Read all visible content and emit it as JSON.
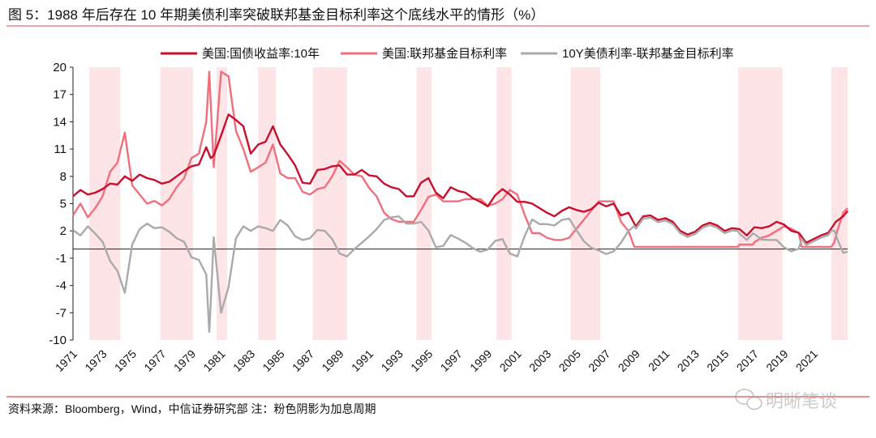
{
  "title": "图 5：1988 年后存在 10 年期美债利率突破联邦基金目标利率这个底线水平的情形（%）",
  "footer": {
    "source": "资料来源：Bloomberg，Wind，中信证券研究部  注：粉色阴影为加息周期",
    "watermark": "明晰笔谈"
  },
  "colors": {
    "ten_year": "#c8102e",
    "fed_funds": "#f06f7d",
    "spread": "#aaaaaa",
    "shading": "#fde4e7",
    "rule": "#e06c6c"
  },
  "chart_data": {
    "type": "line",
    "title": "图 5：1988 年后存在 10 年期美债利率突破联邦基金目标利率这个底线水平的情形（%）",
    "xlabel": "",
    "ylabel": "%",
    "ylim": [
      -10,
      20
    ],
    "xlim": [
      1971,
      2023.3
    ],
    "yticks": [
      "20",
      "17",
      "14",
      "11",
      "8",
      "5",
      "2",
      "-1",
      "-4",
      "-7",
      "-10"
    ],
    "ytick_values": [
      20,
      17,
      14,
      11,
      8,
      5,
      2,
      -1,
      -4,
      -7,
      -10
    ],
    "xticks": [
      "1971",
      "1973",
      "1975",
      "1977",
      "1979",
      "1981",
      "1983",
      "1985",
      "1987",
      "1989",
      "1991",
      "1993",
      "1995",
      "1997",
      "1999",
      "2001",
      "2003",
      "2005",
      "2007",
      "2009",
      "2011",
      "2013",
      "2015",
      "2017",
      "2019",
      "2021"
    ],
    "legend_position": "top-center",
    "grid": false,
    "zero_line": true,
    "shaded_periods_label": "加息周期",
    "shaded_periods": [
      [
        1972.1,
        1974.2
      ],
      [
        1976.9,
        1979.1
      ],
      [
        1980.7,
        1981.4
      ],
      [
        1983.5,
        1984.7
      ],
      [
        1987.2,
        1989.5
      ],
      [
        1994.2,
        1995.2
      ],
      [
        1999.6,
        2000.6
      ],
      [
        2004.6,
        2006.6
      ],
      [
        2015.9,
        2018.9
      ],
      [
        2022.2,
        2023.3
      ]
    ],
    "series": [
      {
        "name": "美国:国债收益率:10年",
        "key": "ten_year",
        "points": [
          [
            1971,
            5.8
          ],
          [
            1971.5,
            6.5
          ],
          [
            1972,
            6.0
          ],
          [
            1972.5,
            6.2
          ],
          [
            1973,
            6.6
          ],
          [
            1973.5,
            7.2
          ],
          [
            1974,
            7.1
          ],
          [
            1974.5,
            8.0
          ],
          [
            1975,
            7.5
          ],
          [
            1975.5,
            8.2
          ],
          [
            1976,
            7.8
          ],
          [
            1976.5,
            7.6
          ],
          [
            1977,
            7.2
          ],
          [
            1977.5,
            7.4
          ],
          [
            1978,
            8.0
          ],
          [
            1978.5,
            8.6
          ],
          [
            1979,
            9.1
          ],
          [
            1979.5,
            9.3
          ],
          [
            1980,
            11.2
          ],
          [
            1980.3,
            10.0
          ],
          [
            1980.5,
            10.3
          ],
          [
            1981,
            12.5
          ],
          [
            1981.5,
            14.8
          ],
          [
            1982,
            14.2
          ],
          [
            1982.5,
            13.5
          ],
          [
            1983,
            10.5
          ],
          [
            1983.5,
            11.5
          ],
          [
            1984,
            11.8
          ],
          [
            1984.5,
            13.5
          ],
          [
            1985,
            11.5
          ],
          [
            1985.5,
            10.4
          ],
          [
            1986,
            9.2
          ],
          [
            1986.5,
            7.3
          ],
          [
            1987,
            7.2
          ],
          [
            1987.5,
            8.7
          ],
          [
            1988,
            8.8
          ],
          [
            1988.5,
            9.1
          ],
          [
            1989,
            9.2
          ],
          [
            1989.5,
            8.2
          ],
          [
            1990,
            8.2
          ],
          [
            1990.5,
            8.7
          ],
          [
            1991,
            8.1
          ],
          [
            1991.5,
            8.0
          ],
          [
            1992,
            7.2
          ],
          [
            1992.5,
            6.8
          ],
          [
            1993,
            6.6
          ],
          [
            1993.5,
            5.8
          ],
          [
            1994,
            5.8
          ],
          [
            1994.5,
            7.3
          ],
          [
            1995,
            7.8
          ],
          [
            1995.5,
            6.2
          ],
          [
            1996,
            5.6
          ],
          [
            1996.5,
            6.8
          ],
          [
            1997,
            6.4
          ],
          [
            1997.5,
            6.2
          ],
          [
            1998,
            5.6
          ],
          [
            1998.5,
            5.2
          ],
          [
            1999,
            4.7
          ],
          [
            1999.5,
            5.9
          ],
          [
            2000,
            6.6
          ],
          [
            2000.5,
            6.0
          ],
          [
            2001,
            5.2
          ],
          [
            2001.5,
            5.2
          ],
          [
            2002,
            5.0
          ],
          [
            2002.5,
            4.5
          ],
          [
            2003,
            4.0
          ],
          [
            2003.5,
            3.6
          ],
          [
            2004,
            4.2
          ],
          [
            2004.5,
            4.6
          ],
          [
            2005,
            4.3
          ],
          [
            2005.5,
            4.1
          ],
          [
            2006,
            4.4
          ],
          [
            2006.5,
            5.1
          ],
          [
            2007,
            4.7
          ],
          [
            2007.5,
            5.0
          ],
          [
            2008,
            3.7
          ],
          [
            2008.5,
            4.0
          ],
          [
            2009,
            2.5
          ],
          [
            2009.5,
            3.6
          ],
          [
            2010,
            3.7
          ],
          [
            2010.5,
            3.2
          ],
          [
            2011,
            3.4
          ],
          [
            2011.5,
            3.0
          ],
          [
            2012,
            2.0
          ],
          [
            2012.5,
            1.6
          ],
          [
            2013,
            1.9
          ],
          [
            2013.5,
            2.6
          ],
          [
            2014,
            2.9
          ],
          [
            2014.5,
            2.6
          ],
          [
            2015,
            2.0
          ],
          [
            2015.5,
            2.3
          ],
          [
            2016,
            2.2
          ],
          [
            2016.5,
            1.5
          ],
          [
            2017,
            2.4
          ],
          [
            2017.5,
            2.3
          ],
          [
            2018,
            2.5
          ],
          [
            2018.5,
            3.0
          ],
          [
            2019,
            2.7
          ],
          [
            2019.5,
            2.0
          ],
          [
            2020,
            1.8
          ],
          [
            2020.5,
            0.7
          ],
          [
            2021,
            1.1
          ],
          [
            2021.5,
            1.5
          ],
          [
            2022,
            1.8
          ],
          [
            2022.5,
            3.0
          ],
          [
            2023,
            3.6
          ],
          [
            2023.3,
            4.2
          ]
        ]
      },
      {
        "name": "美国:联邦基金目标利率",
        "key": "fed_funds",
        "points": [
          [
            1971,
            3.7
          ],
          [
            1971.5,
            5.0
          ],
          [
            1972,
            3.5
          ],
          [
            1972.5,
            4.5
          ],
          [
            1973,
            5.8
          ],
          [
            1973.5,
            8.5
          ],
          [
            1974,
            9.5
          ],
          [
            1974.5,
            12.8
          ],
          [
            1975,
            7.0
          ],
          [
            1975.5,
            6.0
          ],
          [
            1976,
            5.0
          ],
          [
            1976.5,
            5.3
          ],
          [
            1977,
            4.8
          ],
          [
            1977.5,
            5.5
          ],
          [
            1978,
            6.8
          ],
          [
            1978.5,
            7.8
          ],
          [
            1979,
            10.0
          ],
          [
            1979.5,
            10.5
          ],
          [
            1980,
            14.0
          ],
          [
            1980.2,
            19.5
          ],
          [
            1980.5,
            9.0
          ],
          [
            1981,
            19.5
          ],
          [
            1981.5,
            19.0
          ],
          [
            1982,
            13.0
          ],
          [
            1982.5,
            11.0
          ],
          [
            1983,
            8.5
          ],
          [
            1983.5,
            9.0
          ],
          [
            1984,
            9.5
          ],
          [
            1984.5,
            11.5
          ],
          [
            1985,
            8.3
          ],
          [
            1985.5,
            7.8
          ],
          [
            1986,
            7.8
          ],
          [
            1986.5,
            6.3
          ],
          [
            1987,
            6.0
          ],
          [
            1987.5,
            6.6
          ],
          [
            1988,
            6.8
          ],
          [
            1988.5,
            8.0
          ],
          [
            1989,
            9.7
          ],
          [
            1989.5,
            9.0
          ],
          [
            1990,
            8.2
          ],
          [
            1990.5,
            8.0
          ],
          [
            1991,
            6.7
          ],
          [
            1991.5,
            5.8
          ],
          [
            1992,
            4.0
          ],
          [
            1992.5,
            3.3
          ],
          [
            1993,
            3.0
          ],
          [
            1993.5,
            3.0
          ],
          [
            1994,
            3.0
          ],
          [
            1994.5,
            4.3
          ],
          [
            1995,
            5.75
          ],
          [
            1995.5,
            6.0
          ],
          [
            1996,
            5.25
          ],
          [
            1996.5,
            5.25
          ],
          [
            1997,
            5.25
          ],
          [
            1997.5,
            5.5
          ],
          [
            1998,
            5.5
          ],
          [
            1998.5,
            5.5
          ],
          [
            1999,
            4.75
          ],
          [
            1999.5,
            5.0
          ],
          [
            2000,
            5.5
          ],
          [
            2000.5,
            6.5
          ],
          [
            2001,
            6.0
          ],
          [
            2001.5,
            3.75
          ],
          [
            2002,
            1.75
          ],
          [
            2002.5,
            1.75
          ],
          [
            2003,
            1.25
          ],
          [
            2003.5,
            1.0
          ],
          [
            2004,
            1.0
          ],
          [
            2004.5,
            1.25
          ],
          [
            2005,
            2.25
          ],
          [
            2005.5,
            3.25
          ],
          [
            2006,
            4.25
          ],
          [
            2006.5,
            5.25
          ],
          [
            2007,
            5.25
          ],
          [
            2007.5,
            5.25
          ],
          [
            2008,
            3.0
          ],
          [
            2008.5,
            2.0
          ],
          [
            2008.9,
            0.25
          ],
          [
            2015.9,
            0.25
          ],
          [
            2016,
            0.5
          ],
          [
            2016.9,
            0.5
          ],
          [
            2017,
            0.75
          ],
          [
            2017.5,
            1.25
          ],
          [
            2018,
            1.5
          ],
          [
            2018.5,
            2.0
          ],
          [
            2019,
            2.5
          ],
          [
            2019.5,
            2.25
          ],
          [
            2020,
            1.75
          ],
          [
            2020.2,
            0.25
          ],
          [
            2022.2,
            0.25
          ],
          [
            2022.4,
            0.75
          ],
          [
            2022.6,
            2.0
          ],
          [
            2023,
            4.0
          ],
          [
            2023.3,
            4.5
          ]
        ]
      },
      {
        "name": "10Y美债利率-联邦基金目标利率",
        "key": "spread",
        "derived_from": [
          "ten_year",
          "fed_funds"
        ]
      }
    ]
  }
}
